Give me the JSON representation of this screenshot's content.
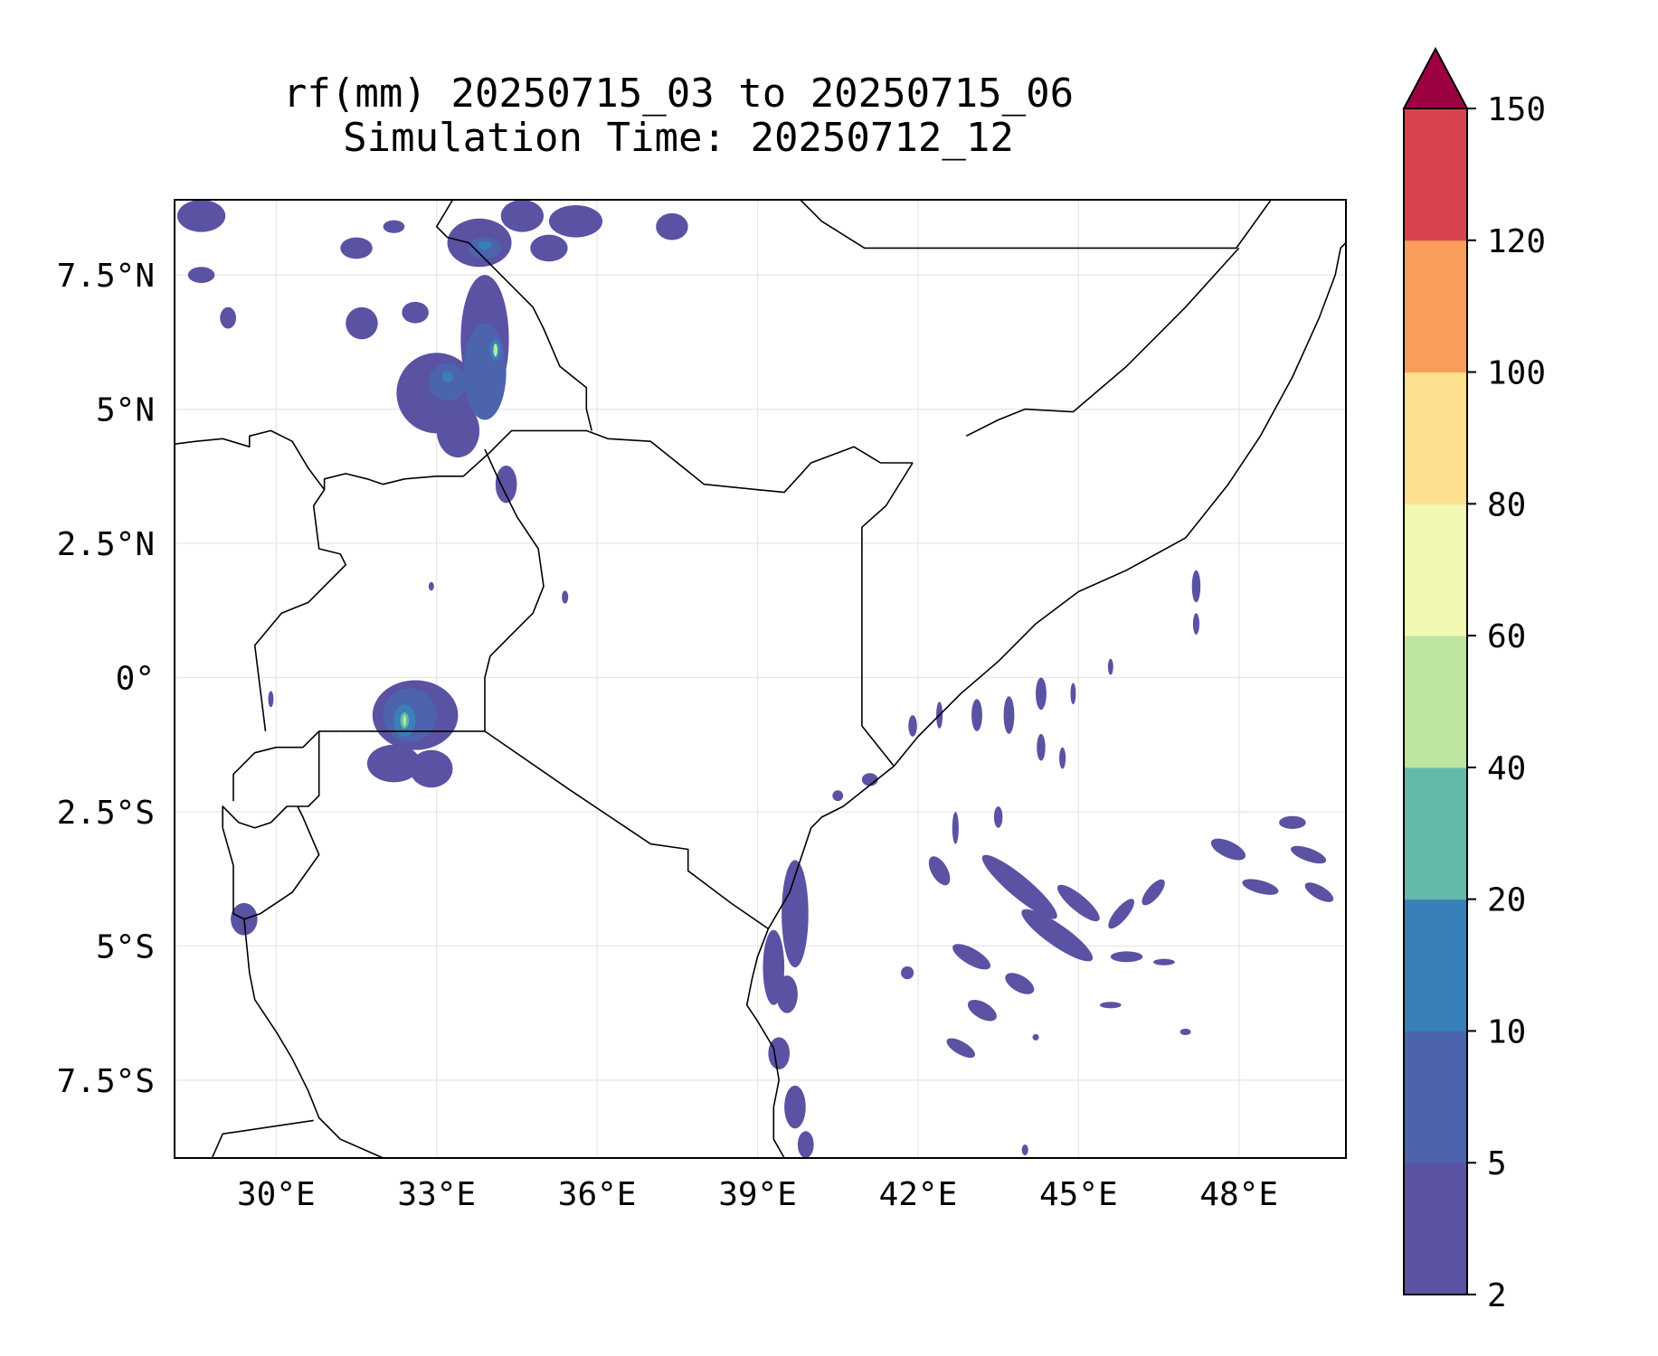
{
  "title": {
    "line1": "rf(mm) 20250715_03 to 20250715_06",
    "line2": "Simulation Time: 20250712_12"
  },
  "map": {
    "lon_range": [
      28.1,
      50.0
    ],
    "lat_range": [
      -8.95,
      8.9
    ],
    "x_ticks": [
      {
        "value": 30,
        "label": "30°E"
      },
      {
        "value": 33,
        "label": "33°E"
      },
      {
        "value": 36,
        "label": "36°E"
      },
      {
        "value": 39,
        "label": "39°E"
      },
      {
        "value": 42,
        "label": "42°E"
      },
      {
        "value": 45,
        "label": "45°E"
      },
      {
        "value": 48,
        "label": "48°E"
      }
    ],
    "y_ticks": [
      {
        "value": 7.5,
        "label": "7.5°N"
      },
      {
        "value": 5,
        "label": "5°N"
      },
      {
        "value": 2.5,
        "label": "2.5°N"
      },
      {
        "value": 0,
        "label": "0°"
      },
      {
        "value": -2.5,
        "label": "2.5°S"
      },
      {
        "value": -5,
        "label": "5°S"
      },
      {
        "value": -7.5,
        "label": "7.5°S"
      }
    ],
    "grid": true,
    "borders": [
      [
        [
          28.1,
          4.35
        ],
        [
          28.5,
          4.4
        ],
        [
          29.0,
          4.45
        ],
        [
          29.5,
          4.3
        ],
        [
          29.5,
          4.5
        ],
        [
          29.9,
          4.6
        ],
        [
          30.3,
          4.4
        ],
        [
          30.6,
          3.9
        ],
        [
          30.9,
          3.5
        ],
        [
          30.9,
          3.7
        ],
        [
          31.3,
          3.8
        ],
        [
          31.7,
          3.7
        ],
        [
          32.0,
          3.6
        ],
        [
          32.4,
          3.7
        ],
        [
          33.0,
          3.75
        ],
        [
          33.5,
          3.75
        ],
        [
          34.0,
          4.2
        ],
        [
          34.4,
          4.6
        ],
        [
          35.3,
          4.6
        ],
        [
          35.8,
          4.6
        ],
        [
          36.2,
          4.45
        ],
        [
          37.0,
          4.4
        ],
        [
          38.0,
          3.6
        ],
        [
          39.0,
          3.5
        ],
        [
          39.5,
          3.45
        ],
        [
          40.0,
          4.0
        ],
        [
          40.8,
          4.3
        ],
        [
          41.3,
          4.0
        ],
        [
          41.9,
          4.0
        ]
      ],
      [
        [
          41.9,
          4.0
        ],
        [
          41.4,
          3.2
        ],
        [
          40.95,
          2.8
        ],
        [
          40.95,
          1.5
        ],
        [
          40.95,
          0.5
        ],
        [
          40.95,
          -0.9
        ],
        [
          41.55,
          -1.65
        ]
      ],
      [
        [
          33.9,
          4.25
        ],
        [
          34.2,
          3.6
        ],
        [
          34.5,
          3.0
        ],
        [
          34.9,
          2.4
        ],
        [
          35.0,
          1.7
        ],
        [
          34.8,
          1.2
        ],
        [
          34.4,
          0.8
        ],
        [
          34.0,
          0.4
        ],
        [
          33.9,
          0.0
        ],
        [
          33.9,
          -1.0
        ],
        [
          31.2,
          -1.0
        ]
      ],
      [
        [
          33.9,
          -1.0
        ],
        [
          35.5,
          -2.1
        ],
        [
          37.0,
          -3.1
        ],
        [
          37.7,
          -3.2
        ],
        [
          37.7,
          -3.6
        ],
        [
          38.5,
          -4.2
        ],
        [
          39.2,
          -4.68
        ]
      ],
      [
        [
          31.2,
          -1.0
        ],
        [
          30.8,
          -1.0
        ],
        [
          30.5,
          -1.3
        ],
        [
          30.0,
          -1.3
        ],
        [
          29.6,
          -1.4
        ],
        [
          29.2,
          -1.8
        ],
        [
          29.2,
          -2.3
        ]
      ],
      [
        [
          30.8,
          -1.0
        ],
        [
          30.8,
          -1.7
        ],
        [
          30.8,
          -2.2
        ],
        [
          30.6,
          -2.4
        ],
        [
          30.5,
          -2.4
        ],
        [
          30.2,
          -2.4
        ],
        [
          29.9,
          -2.7
        ],
        [
          29.6,
          -2.8
        ],
        [
          29.3,
          -2.7
        ],
        [
          29.0,
          -2.4
        ],
        [
          29.0,
          -2.8
        ]
      ],
      [
        [
          30.4,
          -2.4
        ],
        [
          30.5,
          -2.6
        ],
        [
          30.8,
          -3.3
        ],
        [
          30.3,
          -4.0
        ],
        [
          29.7,
          -4.4
        ],
        [
          29.4,
          -4.5
        ]
      ],
      [
        [
          29.0,
          -2.8
        ],
        [
          29.2,
          -3.5
        ],
        [
          29.2,
          -4.4
        ],
        [
          29.4,
          -4.5
        ],
        [
          29.5,
          -5.5
        ],
        [
          29.6,
          -6.0
        ],
        [
          30.0,
          -6.6
        ],
        [
          30.3,
          -7.1
        ],
        [
          30.6,
          -7.7
        ],
        [
          30.8,
          -8.2
        ],
        [
          31.2,
          -8.6
        ],
        [
          32.0,
          -8.95
        ]
      ],
      [
        [
          28.8,
          -8.95
        ],
        [
          29.0,
          -8.5
        ],
        [
          30.7,
          -8.25
        ]
      ],
      [
        [
          29.8,
          -1.0
        ],
        [
          29.7,
          -0.2
        ],
        [
          29.6,
          0.6
        ],
        [
          30.1,
          1.2
        ],
        [
          30.6,
          1.4
        ],
        [
          31.3,
          2.1
        ],
        [
          31.2,
          2.3
        ],
        [
          30.8,
          2.4
        ],
        [
          30.7,
          3.2
        ],
        [
          30.9,
          3.5
        ]
      ],
      [
        [
          39.8,
          8.9
        ],
        [
          40.2,
          8.5
        ],
        [
          41.0,
          8.0
        ],
        [
          42.0,
          8.0
        ],
        [
          43.0,
          8.0
        ],
        [
          47.0,
          8.0
        ],
        [
          47.95,
          8.0
        ],
        [
          48.6,
          8.9
        ]
      ],
      [
        [
          42.9,
          4.5
        ],
        [
          43.5,
          4.8
        ],
        [
          44.0,
          5.0
        ],
        [
          44.9,
          4.95
        ],
        [
          45.9,
          5.8
        ],
        [
          47.0,
          6.9
        ],
        [
          48.0,
          8.0
        ]
      ],
      [
        [
          39.2,
          -4.68
        ],
        [
          39.0,
          -5.2
        ],
        [
          38.9,
          -5.6
        ],
        [
          38.8,
          -6.1
        ],
        [
          39.0,
          -6.4
        ],
        [
          39.3,
          -6.9
        ],
        [
          39.4,
          -7.5
        ],
        [
          39.3,
          -8.0
        ],
        [
          39.3,
          -8.6
        ],
        [
          39.5,
          -8.95
        ]
      ],
      [
        [
          39.2,
          -4.68
        ],
        [
          39.6,
          -4.0
        ],
        [
          39.8,
          -3.4
        ],
        [
          40.0,
          -2.8
        ],
        [
          40.2,
          -2.6
        ],
        [
          40.6,
          -2.4
        ],
        [
          41.55,
          -1.65
        ],
        [
          42.0,
          -1.1
        ],
        [
          42.8,
          -0.3
        ],
        [
          43.5,
          0.3
        ],
        [
          44.2,
          1.0
        ],
        [
          45.0,
          1.6
        ],
        [
          45.9,
          2.0
        ],
        [
          47.0,
          2.6
        ],
        [
          47.8,
          3.6
        ],
        [
          48.4,
          4.5
        ],
        [
          49.0,
          5.6
        ],
        [
          49.5,
          6.7
        ],
        [
          49.8,
          7.5
        ],
        [
          49.9,
          8.0
        ],
        [
          50.0,
          8.1
        ]
      ],
      [
        [
          33.3,
          8.9
        ],
        [
          33.0,
          8.4
        ],
        [
          33.2,
          8.2
        ],
        [
          33.6,
          8.1
        ],
        [
          33.9,
          7.8
        ],
        [
          34.3,
          7.4
        ],
        [
          34.8,
          6.9
        ],
        [
          35.0,
          6.5
        ],
        [
          35.3,
          5.8
        ],
        [
          35.8,
          5.4
        ],
        [
          35.8,
          5.0
        ],
        [
          35.9,
          4.6
        ]
      ]
    ]
  },
  "precip_cells": [
    {
      "lon": 28.6,
      "lat": 8.6,
      "rx": 0.45,
      "ry": 0.3,
      "level": 0
    },
    {
      "lon": 28.6,
      "lat": 7.5,
      "rx": 0.25,
      "ry": 0.15,
      "level": 0
    },
    {
      "lon": 29.1,
      "lat": 6.7,
      "rx": 0.15,
      "ry": 0.2,
      "level": 0
    },
    {
      "lon": 31.6,
      "lat": 6.6,
      "rx": 0.3,
      "ry": 0.3,
      "level": 0
    },
    {
      "lon": 31.5,
      "lat": 8.0,
      "rx": 0.3,
      "ry": 0.2,
      "level": 0
    },
    {
      "lon": 32.2,
      "lat": 8.4,
      "rx": 0.2,
      "ry": 0.12,
      "level": 0
    },
    {
      "lon": 32.6,
      "lat": 6.8,
      "rx": 0.25,
      "ry": 0.2,
      "level": 0
    },
    {
      "lon": 33.0,
      "lat": 5.3,
      "rx": 0.75,
      "ry": 0.75,
      "level": 0
    },
    {
      "lon": 33.4,
      "lat": 4.6,
      "rx": 0.4,
      "ry": 0.5,
      "level": 0
    },
    {
      "lon": 33.9,
      "lat": 6.3,
      "rx": 0.45,
      "ry": 1.2,
      "level": 0
    },
    {
      "lon": 33.8,
      "lat": 8.1,
      "rx": 0.6,
      "ry": 0.45,
      "level": 0
    },
    {
      "lon": 34.6,
      "lat": 8.6,
      "rx": 0.4,
      "ry": 0.3,
      "level": 0
    },
    {
      "lon": 35.6,
      "lat": 8.5,
      "rx": 0.5,
      "ry": 0.3,
      "level": 0
    },
    {
      "lon": 35.1,
      "lat": 8.0,
      "rx": 0.35,
      "ry": 0.25,
      "level": 0
    },
    {
      "lon": 37.4,
      "lat": 8.4,
      "rx": 0.3,
      "ry": 0.25,
      "level": 0
    },
    {
      "lon": 34.3,
      "lat": 3.6,
      "rx": 0.2,
      "ry": 0.35,
      "level": 0
    },
    {
      "lon": 33.9,
      "lat": 5.7,
      "rx": 0.4,
      "ry": 0.9,
      "level": 1
    },
    {
      "lon": 33.2,
      "lat": 5.5,
      "rx": 0.35,
      "ry": 0.35,
      "level": 1
    },
    {
      "lon": 33.9,
      "lat": 8.0,
      "rx": 0.3,
      "ry": 0.2,
      "level": 1
    },
    {
      "lon": 34.1,
      "lat": 6.1,
      "rx": 0.1,
      "ry": 0.2,
      "level": 2
    },
    {
      "lon": 33.2,
      "lat": 5.6,
      "rx": 0.1,
      "ry": 0.1,
      "level": 2
    },
    {
      "lon": 33.9,
      "lat": 8.05,
      "rx": 0.12,
      "ry": 0.08,
      "level": 2
    },
    {
      "lon": 34.1,
      "lat": 6.1,
      "rx": 0.04,
      "ry": 0.12,
      "level": 4
    },
    {
      "lon": 32.6,
      "lat": -0.7,
      "rx": 0.8,
      "ry": 0.65,
      "level": 0
    },
    {
      "lon": 32.2,
      "lat": -1.6,
      "rx": 0.5,
      "ry": 0.35,
      "level": 0
    },
    {
      "lon": 32.9,
      "lat": -1.7,
      "rx": 0.4,
      "ry": 0.35,
      "level": 0
    },
    {
      "lon": 32.5,
      "lat": -0.7,
      "rx": 0.5,
      "ry": 0.5,
      "level": 1
    },
    {
      "lon": 32.4,
      "lat": -0.8,
      "rx": 0.2,
      "ry": 0.3,
      "level": 2
    },
    {
      "lon": 32.4,
      "lat": -0.8,
      "rx": 0.08,
      "ry": 0.15,
      "level": 3
    },
    {
      "lon": 32.4,
      "lat": -0.8,
      "rx": 0.03,
      "ry": 0.1,
      "level": 4
    },
    {
      "lon": 29.4,
      "lat": -4.5,
      "rx": 0.25,
      "ry": 0.3,
      "level": 0
    },
    {
      "lon": 29.9,
      "lat": -0.4,
      "rx": 0.05,
      "ry": 0.15,
      "level": 0
    },
    {
      "lon": 32.9,
      "lat": 1.7,
      "rx": 0.05,
      "ry": 0.08,
      "level": 0
    },
    {
      "lon": 35.4,
      "lat": 1.5,
      "rx": 0.06,
      "ry": 0.12,
      "level": 0
    },
    {
      "lon": 39.7,
      "lat": -4.4,
      "rx": 0.25,
      "ry": 1.0,
      "level": 0
    },
    {
      "lon": 39.3,
      "lat": -5.4,
      "rx": 0.2,
      "ry": 0.7,
      "level": 0
    },
    {
      "lon": 39.55,
      "lat": -5.9,
      "rx": 0.2,
      "ry": 0.35,
      "level": 0
    },
    {
      "lon": 39.4,
      "lat": -7.0,
      "rx": 0.2,
      "ry": 0.3,
      "level": 0
    },
    {
      "lon": 39.7,
      "lat": -8.0,
      "rx": 0.2,
      "ry": 0.4,
      "level": 0
    },
    {
      "lon": 39.9,
      "lat": -8.7,
      "rx": 0.15,
      "ry": 0.25,
      "level": 0
    },
    {
      "lon": 43.9,
      "lat": -3.9,
      "rx": 0.9,
      "ry": 0.2,
      "level": 0,
      "rot": 40
    },
    {
      "lon": 44.6,
      "lat": -4.8,
      "rx": 0.8,
      "ry": 0.2,
      "level": 0,
      "rot": 35
    },
    {
      "lon": 45.0,
      "lat": -4.2,
      "rx": 0.5,
      "ry": 0.15,
      "level": 0,
      "rot": 40
    },
    {
      "lon": 43.0,
      "lat": -5.2,
      "rx": 0.4,
      "ry": 0.15,
      "level": 0,
      "rot": 30
    },
    {
      "lon": 42.4,
      "lat": -3.6,
      "rx": 0.3,
      "ry": 0.15,
      "level": 0,
      "rot": 60
    },
    {
      "lon": 43.2,
      "lat": -6.2,
      "rx": 0.3,
      "ry": 0.15,
      "level": 0,
      "rot": 30
    },
    {
      "lon": 43.9,
      "lat": -5.7,
      "rx": 0.3,
      "ry": 0.15,
      "level": 0,
      "rot": 30
    },
    {
      "lon": 42.8,
      "lat": -6.9,
      "rx": 0.3,
      "ry": 0.12,
      "level": 0,
      "rot": 30
    },
    {
      "lon": 45.8,
      "lat": -4.4,
      "rx": 0.35,
      "ry": 0.12,
      "level": 0,
      "rot": -50
    },
    {
      "lon": 46.4,
      "lat": -4.0,
      "rx": 0.3,
      "ry": 0.12,
      "level": 0,
      "rot": -50
    },
    {
      "lon": 45.9,
      "lat": -5.2,
      "rx": 0.3,
      "ry": 0.1,
      "level": 0
    },
    {
      "lon": 47.8,
      "lat": -3.2,
      "rx": 0.35,
      "ry": 0.15,
      "level": 0,
      "rot": 25
    },
    {
      "lon": 49.3,
      "lat": -3.3,
      "rx": 0.35,
      "ry": 0.12,
      "level": 0,
      "rot": 20
    },
    {
      "lon": 48.4,
      "lat": -3.9,
      "rx": 0.35,
      "ry": 0.12,
      "level": 0,
      "rot": 15
    },
    {
      "lon": 49.5,
      "lat": -4.0,
      "rx": 0.3,
      "ry": 0.12,
      "level": 0,
      "rot": 30
    },
    {
      "lon": 49.0,
      "lat": -2.7,
      "rx": 0.25,
      "ry": 0.12,
      "level": 0
    },
    {
      "lon": 43.1,
      "lat": -0.7,
      "rx": 0.1,
      "ry": 0.3,
      "level": 0
    },
    {
      "lon": 43.7,
      "lat": -0.7,
      "rx": 0.1,
      "ry": 0.35,
      "level": 0
    },
    {
      "lon": 44.3,
      "lat": -0.3,
      "rx": 0.1,
      "ry": 0.3,
      "level": 0
    },
    {
      "lon": 44.3,
      "lat": -1.3,
      "rx": 0.08,
      "ry": 0.25,
      "level": 0
    },
    {
      "lon": 42.7,
      "lat": -2.8,
      "rx": 0.06,
      "ry": 0.3,
      "level": 0
    },
    {
      "lon": 43.5,
      "lat": -2.6,
      "rx": 0.08,
      "ry": 0.2,
      "level": 0
    },
    {
      "lon": 44.7,
      "lat": -1.5,
      "rx": 0.06,
      "ry": 0.2,
      "level": 0
    },
    {
      "lon": 44.2,
      "lat": -6.7,
      "rx": 0.06,
      "ry": 0.06,
      "level": 0
    },
    {
      "lon": 47.2,
      "lat": 1.7,
      "rx": 0.08,
      "ry": 0.3,
      "level": 0
    },
    {
      "lon": 47.2,
      "lat": 1.0,
      "rx": 0.06,
      "ry": 0.2,
      "level": 0
    },
    {
      "lon": 41.1,
      "lat": -1.9,
      "rx": 0.15,
      "ry": 0.12,
      "level": 0
    },
    {
      "lon": 40.5,
      "lat": -2.2,
      "rx": 0.1,
      "ry": 0.1,
      "level": 0
    },
    {
      "lon": 41.9,
      "lat": -0.9,
      "rx": 0.08,
      "ry": 0.2,
      "level": 0
    },
    {
      "lon": 42.4,
      "lat": -0.7,
      "rx": 0.06,
      "ry": 0.25,
      "level": 0
    },
    {
      "lon": 41.8,
      "lat": -5.5,
      "rx": 0.12,
      "ry": 0.12,
      "level": 0
    },
    {
      "lon": 44.0,
      "lat": -8.8,
      "rx": 0.06,
      "ry": 0.1,
      "level": 0
    },
    {
      "lon": 47.0,
      "lat": -6.6,
      "rx": 0.1,
      "ry": 0.06,
      "level": 0
    },
    {
      "lon": 45.6,
      "lat": -6.1,
      "rx": 0.2,
      "ry": 0.06,
      "level": 0
    },
    {
      "lon": 46.6,
      "lat": -5.3,
      "rx": 0.2,
      "ry": 0.06,
      "level": 0
    },
    {
      "lon": 44.9,
      "lat": -0.3,
      "rx": 0.05,
      "ry": 0.2,
      "level": 0
    },
    {
      "lon": 45.6,
      "lat": 0.2,
      "rx": 0.05,
      "ry": 0.15,
      "level": 0
    }
  ],
  "colorbar": {
    "levels": [
      2,
      5,
      10,
      20,
      40,
      60,
      80,
      100,
      120,
      150
    ],
    "colors": [
      "#5a52a3",
      "#4c64ae",
      "#3980b9",
      "#62bba8",
      "#bde4a0",
      "#f1f8b2",
      "#fcdf8f",
      "#f89d5a",
      "#d8434f"
    ],
    "extend_color": "#9e0142",
    "extend": "max"
  }
}
